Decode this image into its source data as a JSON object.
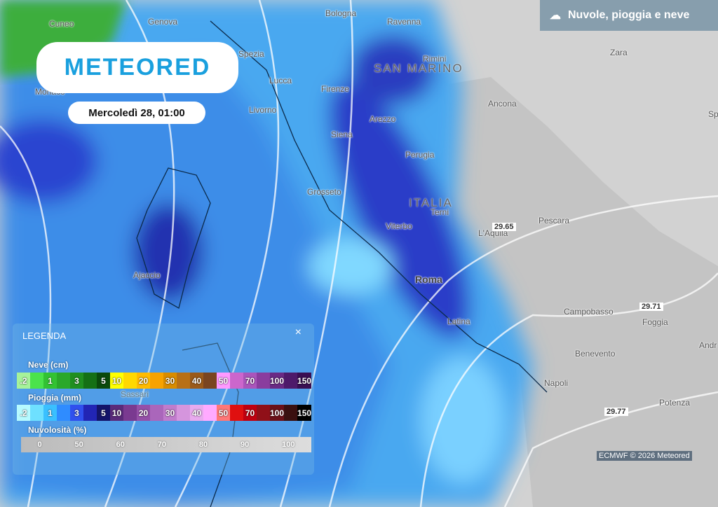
{
  "header": {
    "layer_title": "Nuvole, pioggia e neve",
    "layer_icon": "cloud-rain-snow-icon"
  },
  "logo": {
    "text": "METEORED"
  },
  "date": "Mercoledì 28, 01:00",
  "map": {
    "regions": [
      "SAN MARINO",
      "ITALIA"
    ],
    "cities": [
      "Cuneo",
      "Genova",
      "Bologna",
      "Ravenna",
      "Rimini",
      "Zara",
      "Monaco",
      "Spezia",
      "Lucca",
      "Firenze",
      "Livorno",
      "Ancona",
      "Arezzo",
      "Siena",
      "Perugia",
      "Grosseto",
      "Terni",
      "L'Aquila",
      "Pescara",
      "Viterbo",
      "Ajaccio",
      "Roma",
      "Campobasso",
      "Foggia",
      "Latina",
      "Benevento",
      "Sassari",
      "Napoli",
      "Potenza",
      "Andr",
      "Sp"
    ],
    "isobars": [
      "29.65",
      "29.71",
      "29.77"
    ]
  },
  "legend": {
    "title": "LEGENDA",
    "close": "×",
    "snow": {
      "label": "Neve (cm)",
      "cells": [
        ".2",
        "",
        "1",
        "",
        "3",
        "",
        "5",
        "10",
        "",
        "20",
        "",
        "30",
        "",
        "40",
        "",
        "50",
        "",
        "70",
        "",
        "100",
        "",
        "150"
      ],
      "colors": [
        "#a6f29a",
        "#4be34b",
        "#33c233",
        "#2aa82a",
        "#208f20",
        "#157015",
        "#0b4a0b",
        "#ffff00",
        "#ffd800",
        "#ffbb00",
        "#f7a200",
        "#d98c00",
        "#b87015",
        "#9a5a1a",
        "#7a4520",
        "#ff99ff",
        "#cc66cc",
        "#aa55bb",
        "#8a3d9e",
        "#6a2a84",
        "#4e1a6a",
        "#3a0e52"
      ]
    },
    "rain": {
      "label": "Pioggia (mm)",
      "cells": [
        ".2",
        "",
        "1",
        "",
        "3",
        "",
        "5",
        "10",
        "",
        "20",
        "",
        "30",
        "",
        "40",
        "",
        "50",
        "",
        "70",
        "",
        "100",
        "",
        "150"
      ],
      "colors": [
        "#b6faff",
        "#6ee0ff",
        "#3ac0ff",
        "#2f8cff",
        "#3050ee",
        "#2225b5",
        "#14146a",
        "#5a2a7a",
        "#7a3a90",
        "#9550a8",
        "#aa66bb",
        "#c07ccc",
        "#d595dd",
        "#e8aaee",
        "#ffaaff",
        "#ff7777",
        "#e01010",
        "#c00010",
        "#901018",
        "#6a1018",
        "#3a1010",
        "#000000"
      ]
    },
    "clouds": {
      "label": "Nuvolosità (%)",
      "ticks": [
        "0",
        "50",
        "60",
        "70",
        "80",
        "90",
        "100"
      ]
    }
  },
  "credit": "ECMWF © 2026 Meteored"
}
